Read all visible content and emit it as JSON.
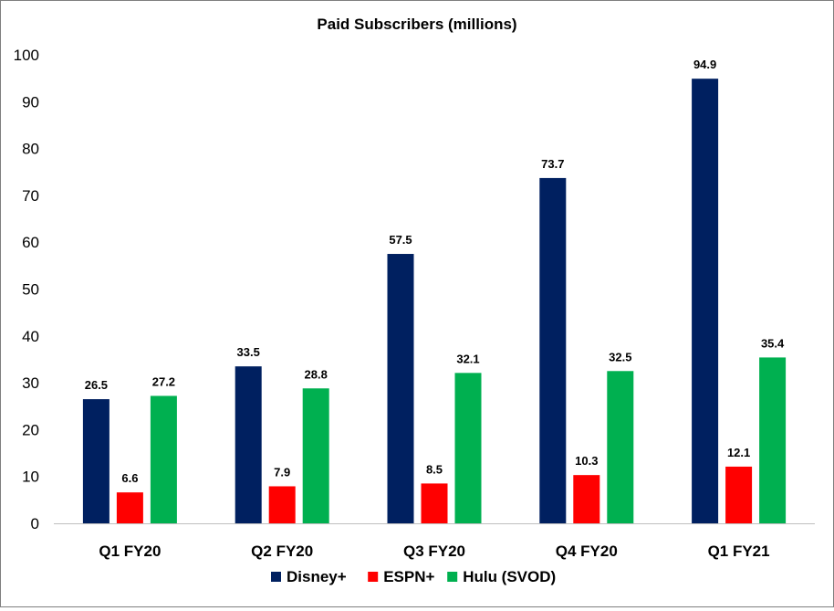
{
  "chart_data": {
    "type": "bar",
    "title": "Paid Subscribers (millions)",
    "categories": [
      "Q1 FY20",
      "Q2 FY20",
      "Q3 FY20",
      "Q4 FY20",
      "Q1 FY21"
    ],
    "series": [
      {
        "name": "Disney+",
        "color": "#002060",
        "values": [
          26.5,
          33.5,
          57.5,
          73.7,
          94.9
        ]
      },
      {
        "name": "ESPN+",
        "color": "#ff0000",
        "values": [
          6.6,
          7.9,
          8.5,
          10.3,
          12.1
        ]
      },
      {
        "name": "Hulu (SVOD)",
        "color": "#00b050",
        "values": [
          27.2,
          28.8,
          32.1,
          32.5,
          35.4
        ]
      }
    ],
    "yticks": [
      "0",
      "10",
      "20",
      "30",
      "40",
      "50",
      "60",
      "70",
      "80",
      "90",
      "100"
    ],
    "ylim": [
      0,
      100
    ],
    "xlabel": "",
    "ylabel": "",
    "grid": false,
    "legend_position": "bottom",
    "data_labels": true
  }
}
